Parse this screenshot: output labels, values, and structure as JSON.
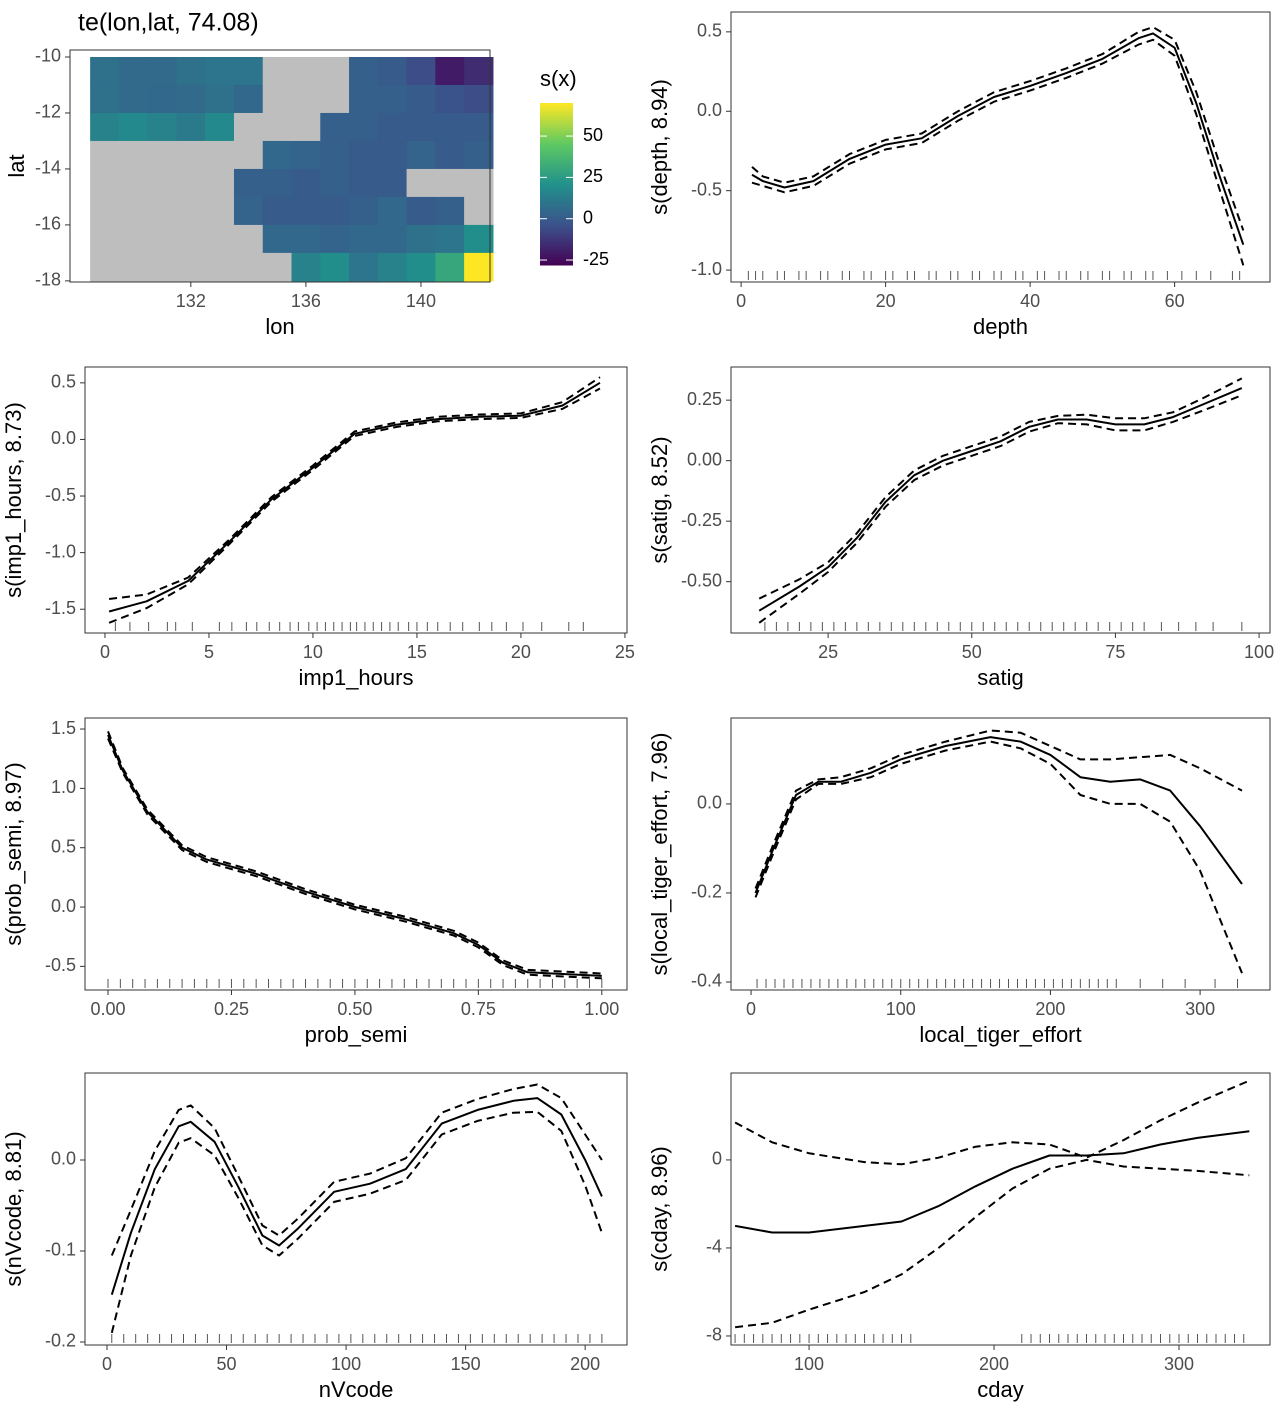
{
  "chart_data": [
    {
      "type": "heatmap",
      "title": "te(lon,lat, 74.08)",
      "xlabel": "lon",
      "ylabel": "lat",
      "x": [
        129,
        130,
        131,
        132,
        133,
        134,
        135,
        136,
        137,
        138,
        139,
        140,
        141,
        142
      ],
      "y": [
        -10.5,
        -11.5,
        -12.5,
        -13.5,
        -14.5,
        -15.5,
        -16.5,
        -17.5
      ],
      "z": [
        [
          8,
          6,
          6,
          8,
          10,
          10,
          null,
          null,
          null,
          2,
          0,
          -5,
          -20,
          -15
        ],
        [
          8,
          6,
          5,
          6,
          8,
          5,
          null,
          null,
          null,
          2,
          2,
          0,
          -3,
          -5
        ],
        [
          15,
          18,
          15,
          12,
          18,
          null,
          null,
          null,
          2,
          2,
          0,
          0,
          0,
          0
        ],
        [
          null,
          null,
          null,
          null,
          null,
          null,
          5,
          3,
          2,
          0,
          0,
          3,
          0,
          2
        ],
        [
          null,
          null,
          null,
          null,
          null,
          2,
          2,
          0,
          2,
          0,
          0,
          null,
          null,
          null
        ],
        [
          null,
          null,
          null,
          null,
          null,
          3,
          0,
          0,
          0,
          2,
          5,
          0,
          2,
          null
        ],
        [
          null,
          null,
          null,
          null,
          null,
          null,
          5,
          5,
          3,
          5,
          5,
          8,
          10,
          20
        ],
        [
          null,
          null,
          null,
          null,
          null,
          null,
          null,
          15,
          20,
          10,
          15,
          20,
          30,
          70
        ]
      ],
      "xlim": [
        127.8,
        142.4
      ],
      "ylim": [
        -18.04,
        -9.75
      ],
      "xticks": [
        132,
        136,
        140
      ],
      "yticks": [
        -10,
        -12,
        -14,
        -16,
        -18
      ],
      "legend_title": "s(x)",
      "zlim": [
        -28,
        70
      ],
      "zticks": [
        50,
        25,
        0,
        -25
      ],
      "colorscale": [
        "#440154",
        "#3b528b",
        "#21918c",
        "#5ec962",
        "#fde725"
      ],
      "na_color": "#bebebe"
    },
    {
      "type": "line",
      "xlabel": "depth",
      "ylabel": "s(depth, 8.94)",
      "color": "#000000",
      "x": [
        1.5,
        3,
        6,
        10,
        15,
        20,
        25,
        30,
        35,
        40,
        45,
        50,
        55,
        57,
        60,
        63,
        66,
        69.5
      ],
      "values": [
        -0.4,
        -0.44,
        -0.48,
        -0.44,
        -0.3,
        -0.21,
        -0.17,
        -0.03,
        0.09,
        0.16,
        0.24,
        0.33,
        0.46,
        0.49,
        0.4,
        0.05,
        -0.38,
        -0.84
      ],
      "upper": [
        -0.35,
        -0.41,
        -0.45,
        -0.41,
        -0.27,
        -0.18,
        -0.14,
        0.0,
        0.12,
        0.19,
        0.27,
        0.36,
        0.5,
        0.53,
        0.45,
        0.12,
        -0.3,
        -0.75
      ],
      "lower": [
        -0.45,
        -0.47,
        -0.51,
        -0.47,
        -0.33,
        -0.24,
        -0.2,
        -0.06,
        0.06,
        0.13,
        0.21,
        0.3,
        0.42,
        0.45,
        0.35,
        -0.02,
        -0.46,
        -0.97
      ],
      "rug": [
        1,
        2,
        3,
        5,
        6,
        8,
        9,
        11,
        12,
        14,
        15,
        17,
        18,
        20,
        21,
        23,
        24,
        26,
        27,
        29,
        30,
        32,
        33,
        35,
        36,
        38,
        39,
        41,
        42,
        44,
        45,
        47,
        48,
        50,
        51,
        53,
        54,
        56,
        57,
        59,
        61,
        63,
        65,
        68,
        69
      ],
      "xlim": [
        -1.4,
        73.2
      ],
      "ylim": [
        -1.075,
        0.625
      ],
      "xticks": [
        0,
        20,
        40,
        60
      ],
      "yticks": [
        {
          "value": 0.5,
          "label": "0.5"
        },
        {
          "value": 0,
          "label": "0.0"
        },
        {
          "value": -0.5,
          "label": "-0.5"
        },
        {
          "value": -1,
          "label": "-1.0"
        }
      ]
    },
    {
      "type": "line",
      "xlabel": "imp1_hours",
      "ylabel": "s(imp1_hours, 8.73)",
      "color": "#000000",
      "x": [
        0.2,
        2,
        4,
        6,
        8,
        10,
        12,
        14,
        16,
        18,
        20,
        22,
        23.8
      ],
      "values": [
        -1.52,
        -1.43,
        -1.25,
        -0.9,
        -0.53,
        -0.25,
        0.05,
        0.13,
        0.18,
        0.2,
        0.21,
        0.3,
        0.5
      ],
      "upper": [
        -1.41,
        -1.37,
        -1.22,
        -0.88,
        -0.51,
        -0.23,
        0.07,
        0.15,
        0.2,
        0.22,
        0.23,
        0.33,
        0.55
      ],
      "lower": [
        -1.62,
        -1.49,
        -1.28,
        -0.92,
        -0.55,
        -0.27,
        0.03,
        0.11,
        0.16,
        0.18,
        0.19,
        0.27,
        0.45
      ],
      "rug": [
        0.5,
        1.2,
        2.1,
        3,
        3.4,
        4.2,
        5.5,
        6.1,
        6.8,
        7.3,
        7.9,
        8.4,
        8.9,
        9.3,
        9.8,
        10.2,
        10.6,
        11,
        11.4,
        11.8,
        12.1,
        12.5,
        12.9,
        13.3,
        13.7,
        14.1,
        14.6,
        15,
        15.5,
        16,
        16.6,
        17.2,
        18,
        18.6,
        19.3,
        20.1,
        21,
        22.3,
        23
      ],
      "xlim": [
        -0.96,
        25.1
      ],
      "ylim": [
        -1.71,
        0.64
      ],
      "xticks": [
        0,
        5,
        10,
        15,
        20,
        25
      ],
      "yticks": [
        {
          "value": 0.5,
          "label": "0.5"
        },
        {
          "value": 0,
          "label": "0.0"
        },
        {
          "value": -0.5,
          "label": "-0.5"
        },
        {
          "value": -1,
          "label": "-1.0"
        },
        {
          "value": -1.5,
          "label": "-1.5"
        }
      ]
    },
    {
      "type": "line",
      "xlabel": "satig",
      "ylabel": "s(satig, 8.52)",
      "color": "#000000",
      "x": [
        13,
        20,
        25,
        30,
        35,
        40,
        45,
        50,
        55,
        60,
        65,
        70,
        75,
        80,
        85,
        90,
        97
      ],
      "values": [
        -0.62,
        -0.52,
        -0.44,
        -0.32,
        -0.17,
        -0.06,
        0.0,
        0.04,
        0.08,
        0.14,
        0.17,
        0.17,
        0.15,
        0.15,
        0.18,
        0.23,
        0.3
      ],
      "upper": [
        -0.57,
        -0.49,
        -0.42,
        -0.3,
        -0.15,
        -0.04,
        0.02,
        0.06,
        0.1,
        0.16,
        0.185,
        0.19,
        0.175,
        0.175,
        0.2,
        0.255,
        0.34
      ],
      "lower": [
        -0.67,
        -0.55,
        -0.46,
        -0.34,
        -0.19,
        -0.08,
        -0.02,
        0.02,
        0.06,
        0.12,
        0.155,
        0.15,
        0.125,
        0.125,
        0.16,
        0.205,
        0.27
      ],
      "rug": [
        14,
        16,
        18,
        20,
        22,
        24,
        26,
        28,
        30,
        32,
        34,
        36,
        38,
        40,
        42,
        44,
        46,
        48,
        50,
        52,
        54,
        56,
        58,
        60,
        62,
        64,
        66,
        68,
        70,
        72,
        74,
        76,
        78,
        80,
        83,
        86,
        89,
        92,
        97
      ],
      "xlim": [
        8.1,
        101.9
      ],
      "ylim": [
        -0.712,
        0.387
      ],
      "xticks": [
        25,
        50,
        75,
        100
      ],
      "yticks": [
        {
          "value": 0.25,
          "label": "0.25"
        },
        {
          "value": 0,
          "label": "0.00"
        },
        {
          "value": -0.25,
          "label": "-0.25"
        },
        {
          "value": -0.5,
          "label": "-0.50"
        }
      ]
    },
    {
      "type": "line",
      "xlabel": "prob_semi",
      "ylabel": "s(prob_semi, 8.97)",
      "color": "#000000",
      "x": [
        0,
        0.03,
        0.08,
        0.15,
        0.2,
        0.3,
        0.4,
        0.5,
        0.6,
        0.7,
        0.75,
        0.8,
        0.85,
        0.9,
        1
      ],
      "values": [
        1.45,
        1.15,
        0.8,
        0.5,
        0.4,
        0.28,
        0.13,
        0,
        -0.1,
        -0.22,
        -0.32,
        -0.47,
        -0.55,
        -0.56,
        -0.58
      ],
      "upper": [
        1.48,
        1.17,
        0.82,
        0.52,
        0.42,
        0.3,
        0.15,
        0.02,
        -0.08,
        -0.2,
        -0.3,
        -0.45,
        -0.53,
        -0.54,
        -0.56
      ],
      "lower": [
        1.42,
        1.13,
        0.78,
        0.48,
        0.38,
        0.26,
        0.11,
        -0.02,
        -0.12,
        -0.24,
        -0.34,
        -0.49,
        -0.57,
        -0.58,
        -0.6
      ],
      "rug": [
        0,
        0.025,
        0.05,
        0.075,
        0.1,
        0.125,
        0.15,
        0.175,
        0.2,
        0.225,
        0.25,
        0.275,
        0.3,
        0.325,
        0.35,
        0.375,
        0.4,
        0.425,
        0.45,
        0.475,
        0.5,
        0.525,
        0.55,
        0.575,
        0.6,
        0.625,
        0.65,
        0.675,
        0.7,
        0.725,
        0.75,
        0.775,
        0.8,
        0.825,
        0.85,
        0.875,
        0.9,
        0.925,
        0.95,
        0.975,
        1
      ],
      "xlim": [
        -0.0466,
        1.051
      ],
      "ylim": [
        -0.699,
        1.593
      ],
      "xticks": [
        {
          "value": 0,
          "label": "0.00"
        },
        {
          "value": 0.25,
          "label": "0.25"
        },
        {
          "value": 0.5,
          "label": "0.50"
        },
        {
          "value": 0.75,
          "label": "0.75"
        },
        {
          "value": 1,
          "label": "1.00"
        }
      ],
      "yticks": [
        {
          "value": 1.5,
          "label": "1.5"
        },
        {
          "value": 1,
          "label": "1.0"
        },
        {
          "value": 0.5,
          "label": "0.5"
        },
        {
          "value": 0,
          "label": "0.0"
        },
        {
          "value": -0.5,
          "label": "-0.5"
        }
      ]
    },
    {
      "type": "line",
      "xlabel": "local_tiger_effort",
      "ylabel": "s(local_tiger_effort, 7.96)",
      "color": "#000000",
      "x": [
        3,
        15,
        30,
        45,
        60,
        80,
        100,
        130,
        160,
        180,
        200,
        220,
        240,
        260,
        280,
        300,
        328
      ],
      "values": [
        -0.2,
        -0.1,
        0.02,
        0.05,
        0.05,
        0.07,
        0.1,
        0.13,
        0.15,
        0.14,
        0.11,
        0.06,
        0.05,
        0.055,
        0.03,
        -0.05,
        -0.18
      ],
      "upper": [
        -0.19,
        -0.09,
        0.03,
        0.055,
        0.06,
        0.08,
        0.11,
        0.14,
        0.165,
        0.16,
        0.13,
        0.1,
        0.1,
        0.105,
        0.11,
        0.08,
        0.03
      ],
      "lower": [
        -0.21,
        -0.11,
        0.01,
        0.045,
        0.045,
        0.06,
        0.09,
        0.12,
        0.14,
        0.125,
        0.09,
        0.02,
        0.0,
        0.0,
        -0.04,
        -0.15,
        -0.38
      ],
      "rug": [
        4,
        10,
        16,
        22,
        28,
        34,
        40,
        46,
        52,
        58,
        64,
        70,
        76,
        82,
        88,
        94,
        100,
        106,
        112,
        118,
        124,
        130,
        136,
        142,
        148,
        154,
        160,
        166,
        172,
        178,
        184,
        190,
        196,
        202,
        208,
        214,
        220,
        226,
        232,
        238,
        244,
        260,
        275,
        290,
        310,
        325
      ],
      "xlim": [
        -13.4,
        346.7
      ],
      "ylim": [
        -0.418,
        0.193
      ],
      "xticks": [
        0,
        100,
        200,
        300
      ],
      "yticks": [
        {
          "value": 0,
          "label": "0.0"
        },
        {
          "value": -0.2,
          "label": "-0.2"
        },
        {
          "value": -0.4,
          "label": "-0.4"
        }
      ]
    },
    {
      "type": "line",
      "xlabel": "nVcode",
      "ylabel": "s(nVcode, 8.81)",
      "color": "#000000",
      "x": [
        2,
        10,
        20,
        30,
        35,
        45,
        55,
        65,
        72,
        80,
        95,
        110,
        125,
        140,
        155,
        170,
        180,
        190,
        200,
        207
      ],
      "values": [
        -0.148,
        -0.08,
        -0.01,
        0.037,
        0.042,
        0.02,
        -0.03,
        -0.083,
        -0.094,
        -0.075,
        -0.035,
        -0.026,
        -0.01,
        0.04,
        0.055,
        0.065,
        0.068,
        0.05,
        0.0,
        -0.04
      ],
      "upper": [
        -0.105,
        -0.055,
        0.01,
        0.055,
        0.06,
        0.035,
        -0.018,
        -0.072,
        -0.083,
        -0.064,
        -0.024,
        -0.015,
        0.002,
        0.052,
        0.067,
        0.078,
        0.083,
        0.068,
        0.028,
        0.0
      ],
      "lower": [
        -0.19,
        -0.105,
        -0.03,
        0.019,
        0.024,
        0.005,
        -0.042,
        -0.094,
        -0.105,
        -0.086,
        -0.046,
        -0.037,
        -0.022,
        0.028,
        0.043,
        0.052,
        0.053,
        0.032,
        -0.028,
        -0.08
      ],
      "rug": [
        2,
        7,
        12,
        17,
        22,
        27,
        32,
        37,
        42,
        47,
        52,
        57,
        62,
        67,
        72,
        77,
        82,
        87,
        92,
        97,
        102,
        107,
        112,
        117,
        122,
        127,
        132,
        137,
        142,
        147,
        152,
        157,
        162,
        167,
        172,
        177,
        182,
        187,
        192,
        197,
        202,
        207
      ],
      "xlim": [
        -9.2,
        217.5
      ],
      "ylim": [
        -0.2033,
        0.0956
      ],
      "xticks": [
        0,
        50,
        100,
        150,
        200
      ],
      "yticks": [
        {
          "value": 0,
          "label": "0.0"
        },
        {
          "value": -0.1,
          "label": "-0.1"
        },
        {
          "value": -0.2,
          "label": "-0.2"
        }
      ]
    },
    {
      "type": "line",
      "xlabel": "cday",
      "ylabel": "s(cday, 8.96)",
      "color": "#000000",
      "x": [
        60,
        80,
        100,
        130,
        150,
        170,
        190,
        210,
        230,
        250,
        270,
        290,
        310,
        338
      ],
      "values": [
        -3.0,
        -3.3,
        -3.3,
        -3.0,
        -2.8,
        -2.1,
        -1.2,
        -0.4,
        0.2,
        0.2,
        0.3,
        0.7,
        1.0,
        1.3
      ],
      "upper": [
        1.7,
        0.8,
        0.3,
        -0.1,
        -0.2,
        0.1,
        0.6,
        0.8,
        0.7,
        0.1,
        0.9,
        1.8,
        2.6,
        3.6
      ],
      "lower": [
        -7.6,
        -7.4,
        -6.8,
        -6.0,
        -5.2,
        -4.0,
        -2.6,
        -1.3,
        -0.4,
        0.0,
        -0.3,
        -0.4,
        -0.5,
        -0.7
      ],
      "rug": [
        60,
        65,
        70,
        75,
        80,
        85,
        90,
        95,
        100,
        105,
        110,
        115,
        120,
        125,
        130,
        135,
        140,
        145,
        150,
        155,
        215,
        220,
        225,
        230,
        235,
        240,
        245,
        250,
        255,
        260,
        265,
        270,
        275,
        280,
        285,
        290,
        295,
        300,
        305,
        310,
        315,
        320,
        325,
        330,
        335
      ],
      "xlim": [
        57.8,
        349.2
      ],
      "ylim": [
        -8.41,
        3.95
      ],
      "xticks": [
        100,
        200,
        300
      ],
      "yticks": [
        0,
        -4,
        -8
      ]
    }
  ]
}
